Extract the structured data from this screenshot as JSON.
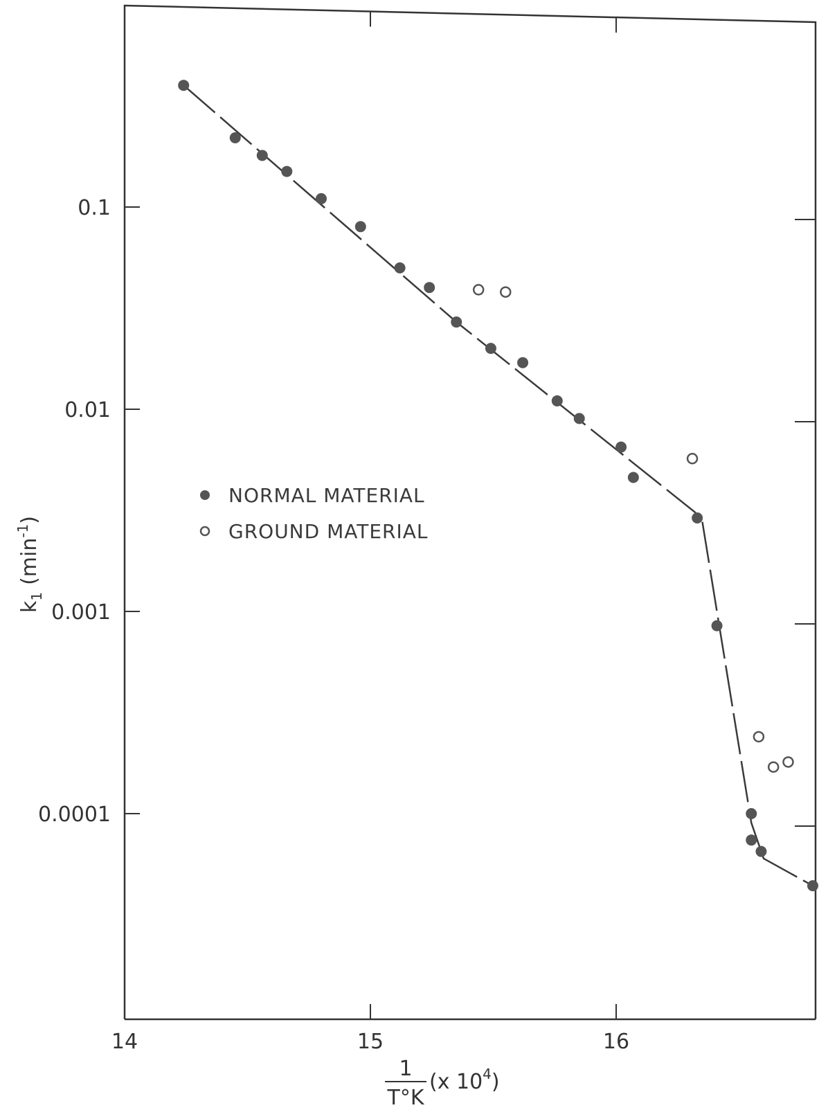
{
  "chart_data": {
    "type": "scatter",
    "title": "",
    "xlabel": "",
    "ylabel": "",
    "x_axis_label": {
      "numerator": "1",
      "denominator": "T°K",
      "multiplier": "(x 10",
      "exponent": "4",
      "close": ")"
    },
    "y_axis_label": {
      "main": "k",
      "subscript": "1",
      "unit_open": "(min",
      "unit_exponent": "-1",
      "unit_close": ")"
    },
    "x_range": [
      14,
      16.8
    ],
    "y_range": [
      1e-05,
      1
    ],
    "y_scale": "log",
    "grid": false,
    "x_ticks": [
      {
        "value": 14,
        "label": "14"
      },
      {
        "value": 15,
        "label": "15"
      },
      {
        "value": 16,
        "label": "16"
      }
    ],
    "y_ticks": [
      {
        "value": 0.1,
        "label": "0.1"
      },
      {
        "value": 0.01,
        "label": "0.01"
      },
      {
        "value": 0.001,
        "label": "0.001"
      },
      {
        "value": 0.0001,
        "label": "0.0001"
      }
    ],
    "legend_position": "left, middle",
    "series": [
      {
        "name": "NORMAL MATERIAL",
        "marker": "filled-circle",
        "color": "#555555",
        "points": [
          {
            "x": 14.24,
            "y": 0.4
          },
          {
            "x": 14.45,
            "y": 0.22
          },
          {
            "x": 14.56,
            "y": 0.18
          },
          {
            "x": 14.66,
            "y": 0.15
          },
          {
            "x": 14.8,
            "y": 0.11
          },
          {
            "x": 14.96,
            "y": 0.08
          },
          {
            "x": 15.12,
            "y": 0.05
          },
          {
            "x": 15.24,
            "y": 0.04
          },
          {
            "x": 15.35,
            "y": 0.027
          },
          {
            "x": 15.49,
            "y": 0.02
          },
          {
            "x": 15.62,
            "y": 0.017
          },
          {
            "x": 15.76,
            "y": 0.011
          },
          {
            "x": 15.85,
            "y": 0.009
          },
          {
            "x": 16.02,
            "y": 0.0065
          },
          {
            "x": 16.07,
            "y": 0.0046
          },
          {
            "x": 16.33,
            "y": 0.0029
          },
          {
            "x": 16.41,
            "y": 0.00085
          },
          {
            "x": 16.55,
            "y": 0.0001
          },
          {
            "x": 16.55,
            "y": 7.4e-05
          },
          {
            "x": 16.59,
            "y": 6.5e-05
          },
          {
            "x": 16.8,
            "y": 4.4e-05
          }
        ]
      },
      {
        "name": "GROUND MATERIAL",
        "marker": "open-circle",
        "color": "#555555",
        "points": [
          {
            "x": 15.44,
            "y": 0.039
          },
          {
            "x": 15.55,
            "y": 0.038
          },
          {
            "x": 16.31,
            "y": 0.0057
          },
          {
            "x": 16.58,
            "y": 0.00024
          },
          {
            "x": 16.64,
            "y": 0.00017
          },
          {
            "x": 16.7,
            "y": 0.00018
          }
        ]
      }
    ],
    "fit_line": {
      "style": "dashed",
      "points": [
        {
          "x": 14.24,
          "y": 0.4
        },
        {
          "x": 15.35,
          "y": 0.027
        },
        {
          "x": 16.32,
          "y": 0.0031
        },
        {
          "x": 16.35,
          "y": 0.0028
        },
        {
          "x": 16.55,
          "y": 9e-05
        },
        {
          "x": 16.6,
          "y": 6e-05
        },
        {
          "x": 16.8,
          "y": 4.4e-05
        }
      ]
    }
  }
}
